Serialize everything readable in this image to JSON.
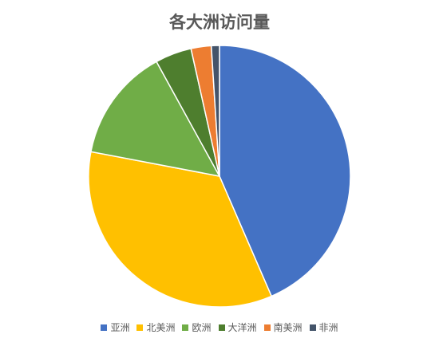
{
  "chart_data": {
    "type": "pie",
    "title": "各大洲访问量",
    "categories": [
      "亚洲",
      "北美洲",
      "欧洲",
      "大洋洲",
      "南美洲",
      "非洲"
    ],
    "values": [
      43.5,
      34.5,
      14.0,
      4.5,
      2.5,
      1.0
    ],
    "colors": [
      "#4472C4",
      "#FFC000",
      "#70AD47",
      "#4E7E2E",
      "#ED7D31",
      "#44546A"
    ],
    "start_angle": "12 o'clock",
    "direction": "clockwise",
    "legend_position": "bottom"
  }
}
